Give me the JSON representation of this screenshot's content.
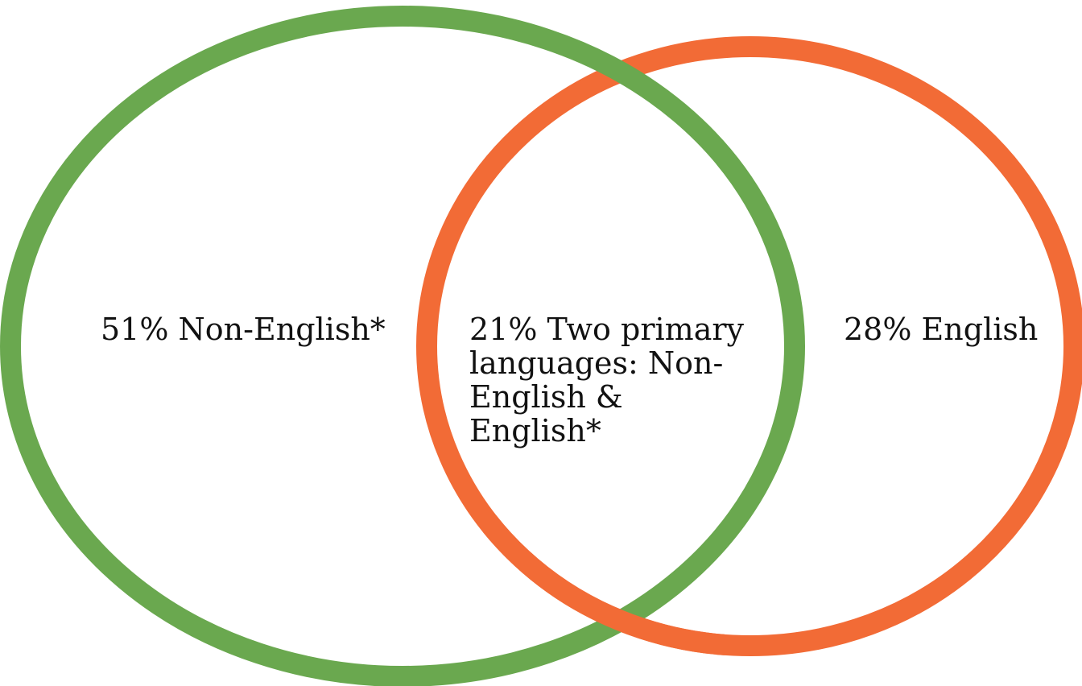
{
  "regions": [
    {
      "lines": [
        "51% Non-English*"
      ]
    },
    {
      "lines": [
        "21% Two primary",
        "languages: Non-",
        "English &",
        "English*"
      ]
    },
    {
      "lines": [
        "28% English"
      ]
    }
  ]
}
